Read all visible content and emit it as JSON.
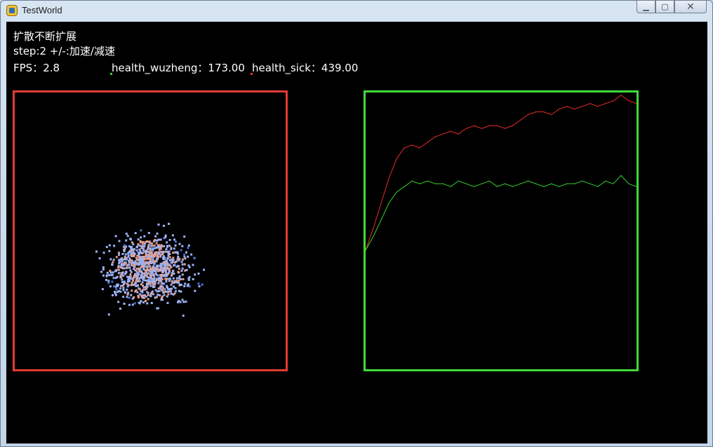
{
  "window": {
    "title": "TestWorld",
    "minimize_glyph": "▁",
    "maximize_glyph": "▢",
    "close_glyph": "✕"
  },
  "hud": {
    "line1": "扩散不断扩展",
    "line2": "step:2 +/-:加速/减速",
    "fps": "FPS：2.8",
    "health_wuzheng": "health_wuzheng：173.00",
    "health_sick": "health_sick：439.00"
  },
  "colors": {
    "healthy_series": "#34d329",
    "sick_series": "#e82c28",
    "sim_frame": "#e33b32",
    "chart_frame": "#3fd93b",
    "particle_healthy": "#9cb2f7",
    "particle_healthy_dark": "#4d6fd1",
    "particle_sick": "#e7a08c"
  },
  "chart_data": {
    "type": "line",
    "title": "",
    "xlabel": "",
    "ylabel": "",
    "series": [
      {
        "name": "health_sick",
        "color": "#e82c28",
        "values": [
          0.43,
          0.51,
          0.6,
          0.69,
          0.76,
          0.8,
          0.81,
          0.8,
          0.82,
          0.84,
          0.85,
          0.86,
          0.85,
          0.87,
          0.88,
          0.87,
          0.88,
          0.88,
          0.87,
          0.88,
          0.9,
          0.92,
          0.93,
          0.93,
          0.92,
          0.94,
          0.95,
          0.94,
          0.95,
          0.96,
          0.95,
          0.96,
          0.97,
          0.99,
          0.97,
          0.96
        ]
      },
      {
        "name": "health_wuzheng",
        "color": "#34d329",
        "values": [
          0.43,
          0.48,
          0.54,
          0.6,
          0.64,
          0.66,
          0.68,
          0.67,
          0.68,
          0.67,
          0.67,
          0.66,
          0.68,
          0.67,
          0.66,
          0.67,
          0.68,
          0.66,
          0.67,
          0.66,
          0.67,
          0.68,
          0.67,
          0.66,
          0.67,
          0.66,
          0.67,
          0.67,
          0.68,
          0.67,
          0.66,
          0.68,
          0.67,
          0.7,
          0.67,
          0.66
        ]
      }
    ],
    "ylim": [
      0,
      1
    ]
  }
}
